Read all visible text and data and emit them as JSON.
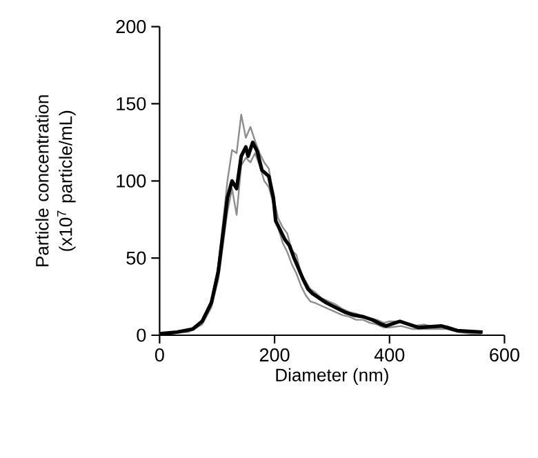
{
  "chart_data": {
    "type": "line",
    "xlabel": "Diameter (nm)",
    "ylabel": "Particle concentration (x10$^{7}$ particle/mL)",
    "xlim": [
      0,
      600
    ],
    "ylim": [
      0,
      200
    ],
    "xticks": [
      0,
      200,
      400,
      600
    ],
    "yticks": [
      0,
      50,
      100,
      150,
      200
    ],
    "grid": false,
    "marker": "none",
    "line_style": "solid",
    "series": [
      {
        "color": "#8c8c8c",
        "x": [
          0,
          50,
          74,
          90,
          102,
          110,
          118,
          126,
          134,
          142,
          150,
          158,
          166,
          174,
          182,
          190,
          198,
          206,
          214,
          222,
          230,
          238,
          246,
          254,
          262,
          270,
          282,
          294,
          306,
          318,
          330,
          342,
          354,
          366,
          378,
          390,
          400,
          420,
          440,
          460,
          480,
          500,
          520,
          540,
          560
        ],
        "values": [
          1,
          3,
          9,
          22,
          45,
          72,
          100,
          120,
          118,
          143,
          128,
          135,
          126,
          118,
          112,
          108,
          90,
          76,
          70,
          66,
          55,
          52,
          40,
          35,
          30,
          28,
          24,
          22,
          20,
          17,
          15,
          14,
          12,
          11,
          10,
          8,
          9,
          9,
          6,
          7,
          5,
          6,
          3,
          2,
          1
        ]
      },
      {
        "color": "#8c8c8c",
        "x": [
          0,
          50,
          74,
          90,
          102,
          110,
          118,
          126,
          134,
          142,
          150,
          158,
          166,
          174,
          182,
          190,
          198,
          206,
          214,
          222,
          230,
          238,
          246,
          254,
          262,
          270,
          282,
          294,
          306,
          318,
          330,
          342,
          354,
          366,
          378,
          390,
          400,
          420,
          440,
          460,
          480,
          500,
          520,
          540,
          560
        ],
        "values": [
          1,
          2,
          7,
          18,
          36,
          58,
          80,
          95,
          78,
          110,
          115,
          112,
          118,
          110,
          100,
          96,
          85,
          70,
          60,
          54,
          46,
          40,
          32,
          26,
          22,
          21,
          19,
          17,
          15,
          13,
          12,
          10,
          10,
          8,
          7,
          5,
          5,
          6,
          4,
          4,
          4,
          4,
          2,
          1,
          1
        ]
      },
      {
        "color": "#000000",
        "x": [
          0,
          30,
          58,
          74,
          90,
          102,
          110,
          118,
          126,
          134,
          142,
          150,
          154,
          162,
          170,
          178,
          190,
          198,
          202,
          210,
          218,
          226,
          234,
          242,
          250,
          258,
          266,
          278,
          290,
          306,
          322,
          338,
          354,
          370,
          386,
          394,
          418,
          450,
          490,
          518,
          562
        ],
        "values": [
          1,
          2,
          4,
          9,
          21,
          41,
          65,
          89,
          100,
          95,
          116,
          122,
          116,
          125,
          119,
          107,
          103,
          89,
          74,
          68,
          62,
          58,
          50,
          43,
          36,
          30,
          27,
          24,
          21,
          18,
          15,
          13,
          12,
          10,
          7,
          6,
          9,
          5,
          6,
          3,
          2
        ]
      }
    ]
  }
}
